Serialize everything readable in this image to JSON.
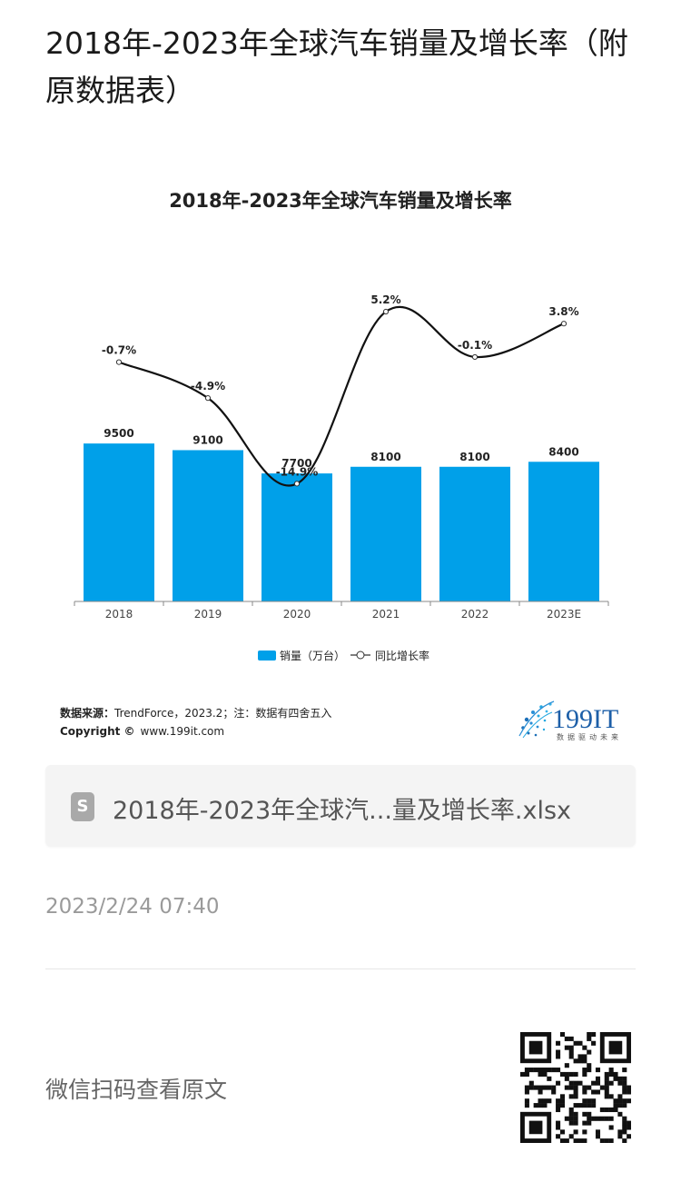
{
  "page": {
    "title": "2018年-2023年全球汽车销量及增长率（附原数据表）"
  },
  "chart_data": {
    "type": "bar",
    "title": "2018年-2023年全球汽车销量及增长率",
    "categories": [
      "2018",
      "2019",
      "2020",
      "2021",
      "2022",
      "2023E"
    ],
    "series": [
      {
        "name": "销量（万台）",
        "type": "bar",
        "values": [
          9500,
          9100,
          7700,
          8100,
          8100,
          8400
        ],
        "labels": [
          "9500",
          "9100",
          "7700",
          "8100",
          "8100",
          "8400"
        ],
        "color": "#00a0e9"
      },
      {
        "name": "同比增长率",
        "type": "line",
        "values": [
          -0.7,
          -4.9,
          -14.9,
          5.2,
          -0.1,
          3.8
        ],
        "labels": [
          "-0.7%",
          "-4.9%",
          "-14.9%",
          "5.2%",
          "-0.1%",
          "3.8%"
        ],
        "color": "#111111"
      }
    ],
    "legend": "bottom",
    "grid": false,
    "source_label": "数据来源：",
    "source_text": "TrendForce，2023.2；注：数据有四舍五入",
    "copyright_label": "Copyright ©",
    "copyright_text": "www.199it.com",
    "logo_text": "199IT",
    "logo_tagline": "数据驱动未来"
  },
  "file_card": {
    "name": "2018年-2023年全球汽...量及增长率.xlsx",
    "icon": "spreadsheet-icon",
    "icon_letter": "S"
  },
  "timestamp": "2023/2/24 07:40",
  "qr": {
    "hint": "微信扫码查看原文",
    "icon": "qr-code-icon"
  }
}
